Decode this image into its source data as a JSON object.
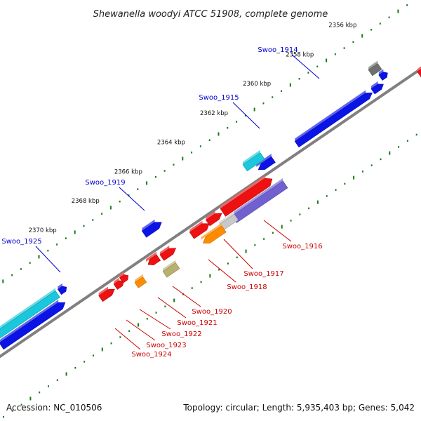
{
  "title": "Shewanella woodyi ATCC 51908, complete genome",
  "footer": {
    "accession": "Accession: NC_010506",
    "stats": "Topology: circular; Length: 5,935,403 bp; Genes: 5,042"
  },
  "ticks": [
    {
      "label": "2356 kbp"
    },
    {
      "label": "2358 kbp"
    },
    {
      "label": "2360 kbp"
    },
    {
      "label": "2362 kbp"
    },
    {
      "label": "2364 kbp"
    },
    {
      "label": "2366 kbp"
    },
    {
      "label": "2368 kbp"
    },
    {
      "label": "2370 kbp"
    }
  ],
  "genes": [
    {
      "label": "Swoo_1914",
      "color": "#0000cc"
    },
    {
      "label": "Swoo_1915",
      "color": "#0000cc"
    },
    {
      "label": "Swoo_1919",
      "color": "#0000cc"
    },
    {
      "label": "Swoo_1925",
      "color": "#0000cc"
    },
    {
      "label": "Swoo_1916",
      "color": "#cc0000"
    },
    {
      "label": "Swoo_1917",
      "color": "#cc0000"
    },
    {
      "label": "Swoo_1918",
      "color": "#cc0000"
    },
    {
      "label": "Swoo_1920",
      "color": "#cc0000"
    },
    {
      "label": "Swoo_1921",
      "color": "#cc0000"
    },
    {
      "label": "Swoo_1922",
      "color": "#cc0000"
    },
    {
      "label": "Swoo_1923",
      "color": "#cc0000"
    },
    {
      "label": "Swoo_1924",
      "color": "#cc0000"
    }
  ],
  "feature_colors": {
    "blue": "#0a14e6",
    "cyan": "#19c8dc",
    "red": "#ee1111",
    "orange": "#ff8c00",
    "lavender": "#7060d0",
    "olive": "#b8b070",
    "gray": "#707070",
    "silver": "#c8c8c8",
    "backbone": "#808080",
    "ticks": "#1a7a1a"
  }
}
